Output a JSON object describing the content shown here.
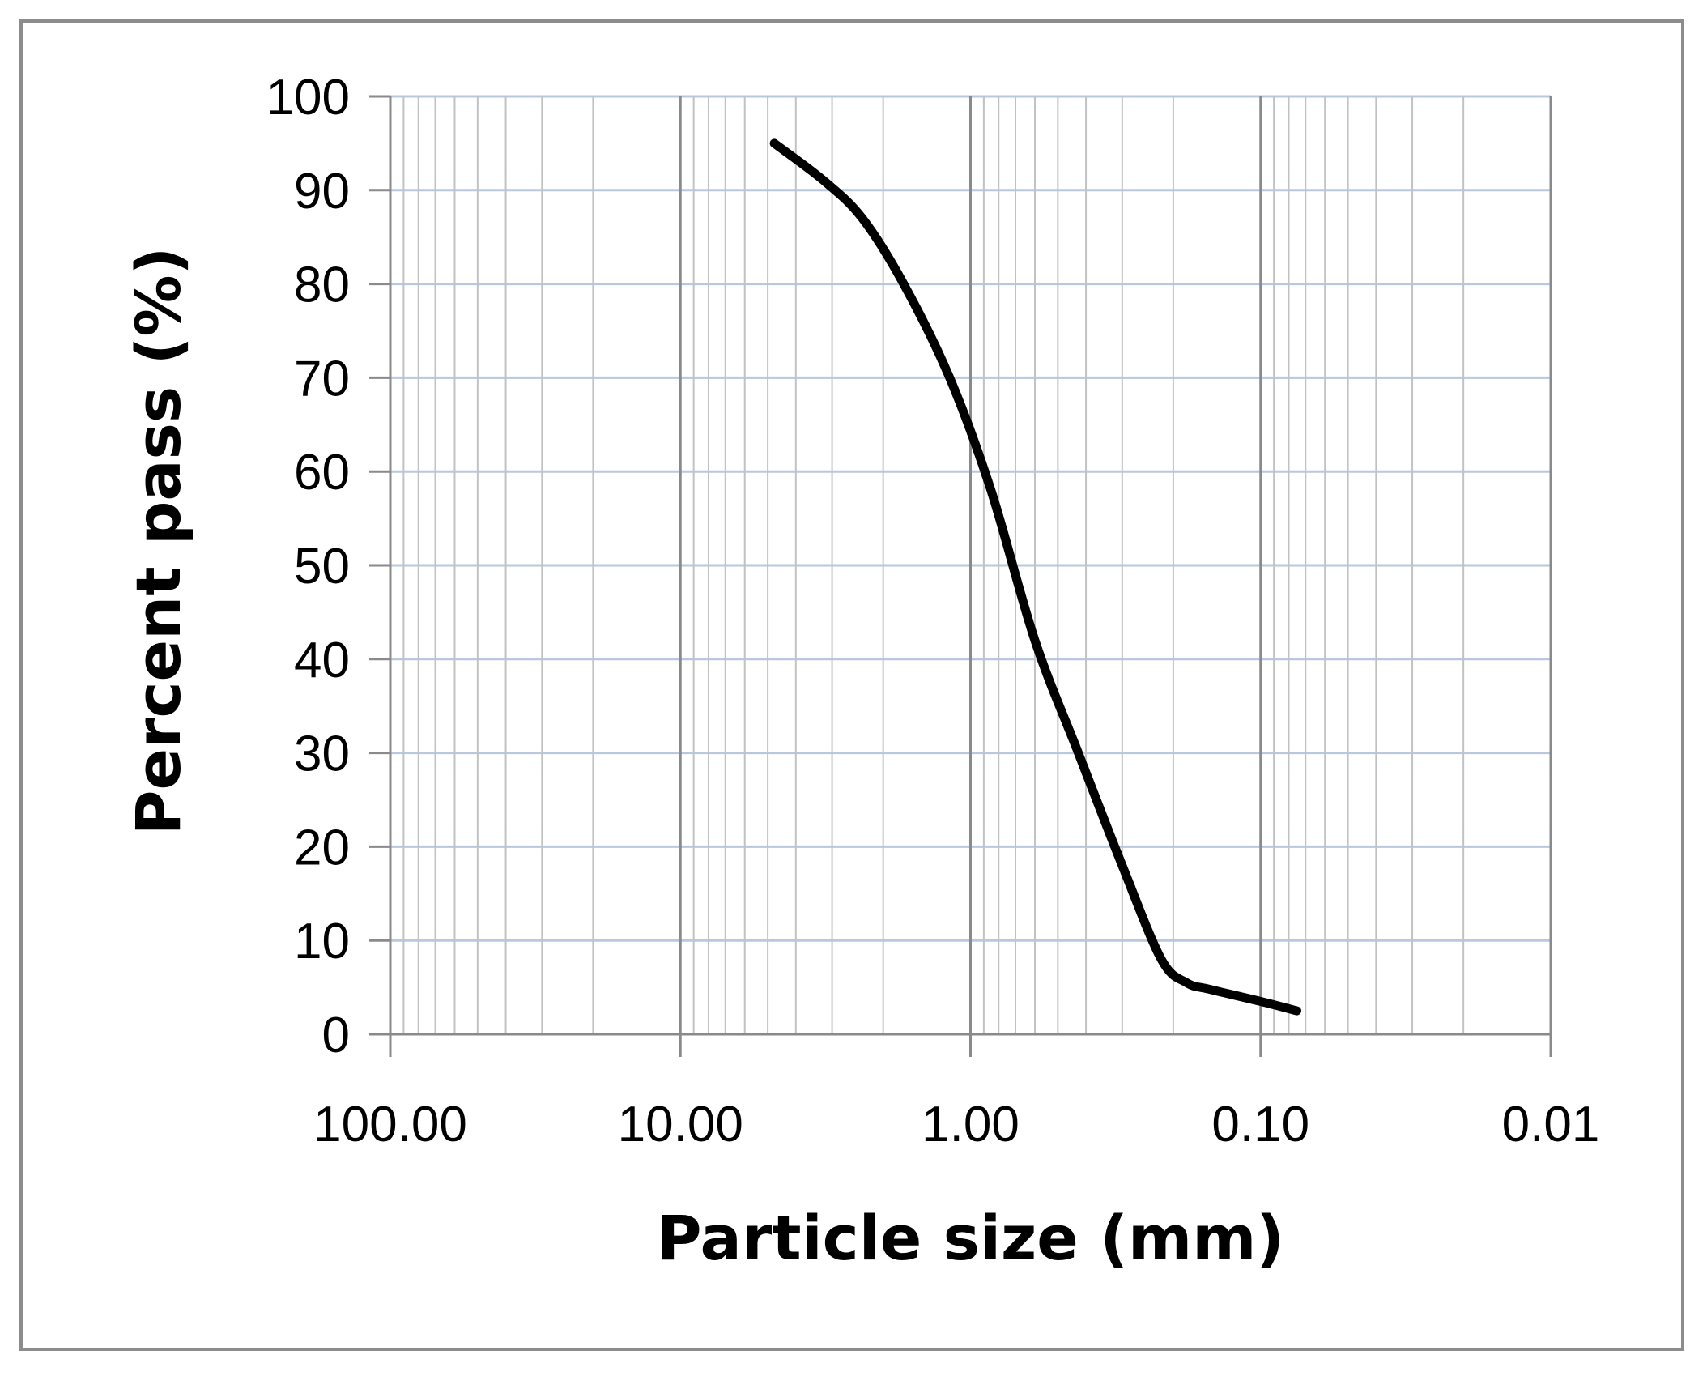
{
  "chart_data": {
    "type": "line",
    "title": "",
    "xlabel": "Particle size (mm)",
    "ylabel": "Percent pass (%)",
    "x_scale": "log",
    "x_reversed": true,
    "xlim": [
      100,
      0.01
    ],
    "ylim": [
      0,
      100
    ],
    "x_ticks": [
      100,
      10,
      1,
      0.1,
      0.01
    ],
    "x_tick_labels": [
      "100.00",
      "10.00",
      "1.00",
      "0.10",
      "0.01"
    ],
    "y_ticks": [
      0,
      10,
      20,
      30,
      40,
      50,
      60,
      70,
      80,
      90,
      100
    ],
    "y_tick_labels": [
      "0",
      "10",
      "20",
      "30",
      "40",
      "50",
      "60",
      "70",
      "80",
      "90",
      "100"
    ],
    "grid": true,
    "legend": "none",
    "series": [
      {
        "color": "#000000",
        "x": [
          4.75,
          3.2,
          2.36,
          1.7,
          1.18,
          0.85,
          0.6,
          0.425,
          0.3,
          0.22,
          0.18,
          0.15,
          0.1,
          0.075
        ],
        "y": [
          95,
          91,
          87,
          80,
          70,
          58,
          42,
          30,
          18,
          8,
          5.5,
          4.8,
          3.5,
          2.5
        ]
      }
    ],
    "colors": {
      "major_vertical_grid": "#8a8a8a",
      "minor_vertical_grid": "#c2c2c2",
      "horizontal_grid": "#b8c8e0",
      "axis": "#8a8a8a",
      "frame": "#8c8c8c"
    }
  }
}
